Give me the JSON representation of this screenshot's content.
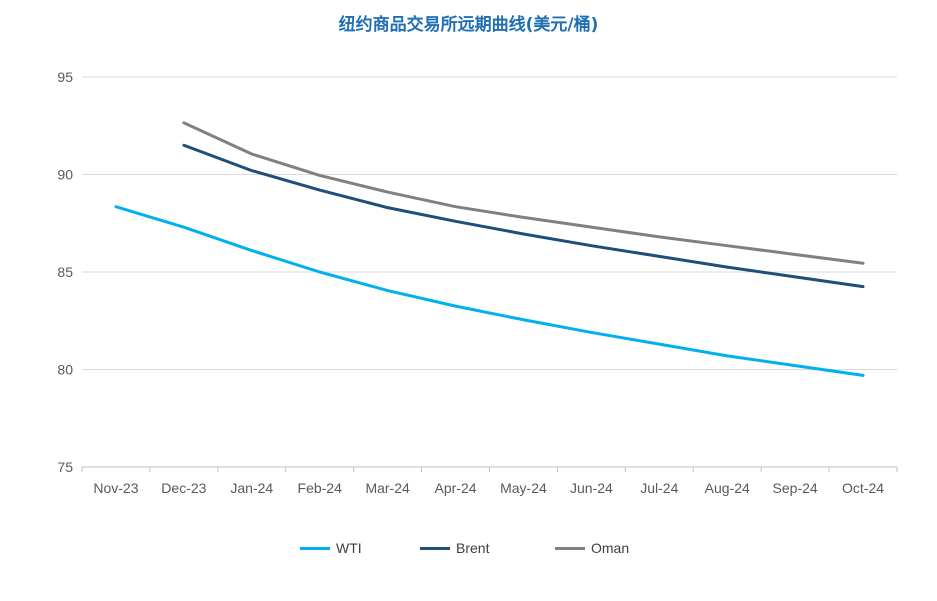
{
  "chart_data": {
    "type": "line",
    "title": "纽约商品交易所远期曲线(美元/桶)",
    "categories": [
      "Nov-23",
      "Dec-23",
      "Jan-24",
      "Feb-24",
      "Mar-24",
      "Apr-24",
      "May-24",
      "Jun-24",
      "Jul-24",
      "Aug-24",
      "Sep-24",
      "Oct-24"
    ],
    "ylim": [
      75,
      95
    ],
    "yticks": [
      75,
      80,
      85,
      90,
      95
    ],
    "grid": true,
    "legend_position": "bottom",
    "series": [
      {
        "name": "WTI",
        "color": "#00b0f0",
        "values": [
          88.35,
          87.3,
          86.1,
          85.0,
          84.05,
          83.25,
          82.55,
          81.9,
          81.3,
          80.7,
          80.2,
          79.7
        ]
      },
      {
        "name": "Brent",
        "color": "#1f4e79",
        "values": [
          null,
          91.5,
          90.2,
          89.2,
          88.3,
          87.6,
          86.95,
          86.35,
          85.8,
          85.25,
          84.75,
          84.25
        ]
      },
      {
        "name": "Oman",
        "color": "#808080",
        "values": [
          null,
          92.65,
          91.05,
          89.95,
          89.1,
          88.35,
          87.8,
          87.3,
          86.8,
          86.35,
          85.9,
          85.45
        ]
      }
    ]
  }
}
